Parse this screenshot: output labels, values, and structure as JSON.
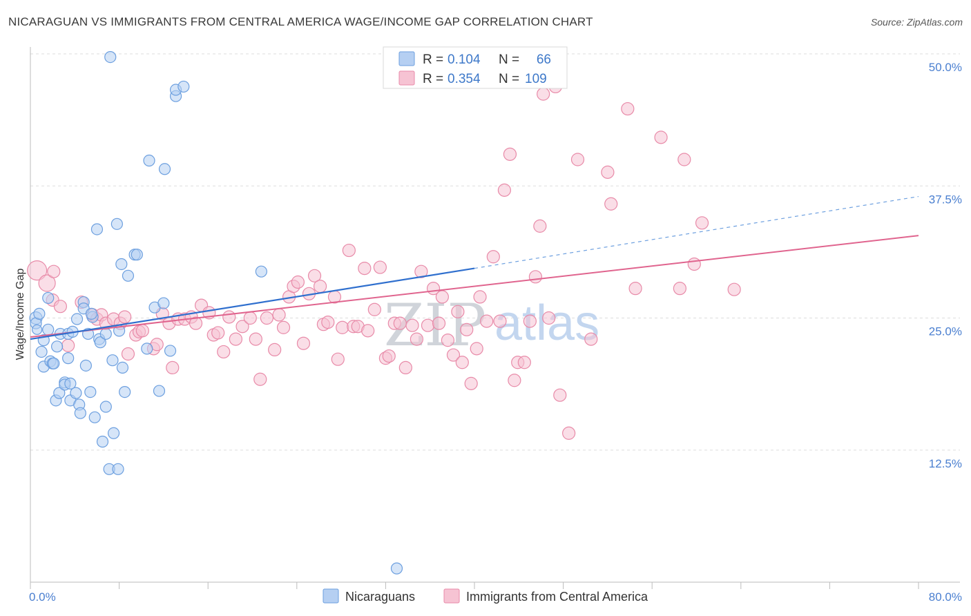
{
  "title": "NICARAGUAN VS IMMIGRANTS FROM CENTRAL AMERICA WAGE/INCOME GAP CORRELATION CHART",
  "source": "Source: ZipAtlas.com",
  "watermark": {
    "zip": "ZIP",
    "atlas": "atlas"
  },
  "colors": {
    "blue_fill": "#b5cff2",
    "blue_stroke": "#6c9fdf",
    "blue_line": "#2f6fce",
    "pink_fill": "#f6c3d3",
    "pink_stroke": "#e88aa8",
    "pink_line": "#e0648e",
    "tick_label": "#4a7fd0",
    "grid": "#dddddd"
  },
  "legend_top": {
    "rows": [
      {
        "r_label": "R =",
        "r_value": "0.104",
        "n_label": "N =",
        "n_value": "66",
        "series": "blue"
      },
      {
        "r_label": "R =",
        "r_value": "0.354",
        "n_label": "N =",
        "n_value": "109",
        "series": "pink"
      }
    ]
  },
  "legend_bottom": [
    {
      "label": "Nicaraguans",
      "series": "blue"
    },
    {
      "label": "Immigrants from Central America",
      "series": "pink"
    }
  ],
  "chart_data": {
    "type": "scatter",
    "title": "NICARAGUAN VS IMMIGRANTS FROM CENTRAL AMERICA WAGE/INCOME GAP CORRELATION CHART",
    "xlabel": "",
    "ylabel": "Wage/Income Gap",
    "xlim": [
      0,
      80
    ],
    "ylim": [
      0,
      50
    ],
    "x_tick_labels": [
      "0.0%",
      "80.0%"
    ],
    "y_ticks": [
      12.5,
      25.0,
      37.5,
      50.0
    ],
    "y_tick_labels": [
      "12.5%",
      "25.0%",
      "37.5%",
      "50.0%"
    ],
    "grid": "horizontal dashed",
    "legend_placement": "top-center",
    "series": [
      {
        "name": "Nicaraguans",
        "color": "blue",
        "trend": {
          "x0": 0,
          "y0": 23.0,
          "x1": 40,
          "y1": 29.7,
          "dashed_to_x": 80,
          "dashed_to_y": 36.5
        },
        "points": [
          [
            0.5,
            25.0,
            9
          ],
          [
            0.5,
            24.5,
            8
          ],
          [
            0.6,
            23.9,
            7
          ],
          [
            0.8,
            25.4,
            8
          ],
          [
            1.2,
            22.9,
            8
          ],
          [
            1.0,
            21.8,
            8
          ],
          [
            1.2,
            20.4,
            8
          ],
          [
            1.6,
            23.9,
            8
          ],
          [
            1.6,
            26.9,
            8
          ],
          [
            1.8,
            20.9,
            8
          ],
          [
            2.0,
            20.7,
            8
          ],
          [
            2.1,
            20.7,
            8
          ],
          [
            2.3,
            17.2,
            8
          ],
          [
            2.4,
            22.3,
            8
          ],
          [
            2.6,
            17.9,
            8
          ],
          [
            2.7,
            23.5,
            8
          ],
          [
            3.1,
            18.9,
            8
          ],
          [
            3.1,
            18.7,
            8
          ],
          [
            3.4,
            23.5,
            8
          ],
          [
            3.4,
            21.2,
            8
          ],
          [
            3.6,
            17.2,
            8
          ],
          [
            3.8,
            23.7,
            8
          ],
          [
            4.1,
            17.9,
            8
          ],
          [
            4.2,
            24.9,
            8
          ],
          [
            4.4,
            16.8,
            8
          ],
          [
            4.5,
            16.0,
            8
          ],
          [
            4.8,
            26.5,
            8
          ],
          [
            4.8,
            25.9,
            8
          ],
          [
            5.0,
            20.5,
            8
          ],
          [
            5.2,
            23.5,
            8
          ],
          [
            5.4,
            18.0,
            8
          ],
          [
            5.6,
            25.1,
            8
          ],
          [
            5.8,
            15.6,
            8
          ],
          [
            6.0,
            33.4,
            8
          ],
          [
            6.2,
            23.0,
            8
          ],
          [
            6.3,
            22.7,
            8
          ],
          [
            6.5,
            13.3,
            8
          ],
          [
            6.8,
            23.5,
            8
          ],
          [
            6.8,
            16.6,
            8
          ],
          [
            7.1,
            10.7,
            8
          ],
          [
            7.2,
            49.7,
            8
          ],
          [
            7.4,
            21.0,
            8
          ],
          [
            7.5,
            14.1,
            8
          ],
          [
            7.8,
            33.9,
            8
          ],
          [
            7.9,
            10.7,
            8
          ],
          [
            8.0,
            23.8,
            8
          ],
          [
            8.2,
            30.1,
            8
          ],
          [
            8.3,
            20.3,
            8
          ],
          [
            8.5,
            18.0,
            8
          ],
          [
            8.8,
            29.0,
            8
          ],
          [
            9.4,
            31.0,
            8
          ],
          [
            9.6,
            31.0,
            8
          ],
          [
            10.5,
            22.1,
            8
          ],
          [
            10.7,
            39.9,
            8
          ],
          [
            11.2,
            26.0,
            8
          ],
          [
            11.6,
            18.1,
            8
          ],
          [
            12.0,
            26.4,
            8
          ],
          [
            12.1,
            39.1,
            8
          ],
          [
            12.6,
            21.9,
            8
          ],
          [
            13.1,
            46.0,
            8
          ],
          [
            13.1,
            46.6,
            8
          ],
          [
            13.8,
            46.9,
            8
          ],
          [
            20.8,
            29.4,
            8
          ],
          [
            33.0,
            1.3,
            8
          ],
          [
            3.6,
            18.8,
            8
          ],
          [
            5.5,
            25.4,
            8
          ]
        ]
      },
      {
        "name": "Immigrants from Central America",
        "color": "pink",
        "trend": {
          "x0": 0,
          "y0": 23.2,
          "x1": 80,
          "y1": 32.8
        },
        "points": [
          [
            0.6,
            29.5,
            14
          ],
          [
            1.5,
            28.3,
            12
          ],
          [
            2.0,
            26.7,
            9
          ],
          [
            2.7,
            26.1,
            9
          ],
          [
            3.4,
            22.4,
            9
          ],
          [
            4.6,
            26.5,
            9
          ],
          [
            5.6,
            25.3,
            9
          ],
          [
            6.0,
            24.9,
            9
          ],
          [
            6.4,
            25.3,
            9
          ],
          [
            6.8,
            24.5,
            9
          ],
          [
            7.5,
            24.9,
            9
          ],
          [
            8.1,
            24.5,
            9
          ],
          [
            8.5,
            25.1,
            9
          ],
          [
            8.8,
            21.6,
            9
          ],
          [
            9.5,
            23.4,
            9
          ],
          [
            9.8,
            23.7,
            9
          ],
          [
            10.1,
            23.8,
            9
          ],
          [
            11.1,
            22.1,
            9
          ],
          [
            11.4,
            22.5,
            9
          ],
          [
            11.9,
            25.4,
            9
          ],
          [
            12.5,
            24.5,
            9
          ],
          [
            12.8,
            20.3,
            9
          ],
          [
            13.3,
            24.9,
            9
          ],
          [
            13.9,
            24.9,
            9
          ],
          [
            14.5,
            25.1,
            9
          ],
          [
            14.9,
            24.5,
            9
          ],
          [
            15.4,
            26.2,
            9
          ],
          [
            16.1,
            25.5,
            9
          ],
          [
            16.5,
            23.4,
            9
          ],
          [
            16.9,
            23.6,
            9
          ],
          [
            17.4,
            21.8,
            9
          ],
          [
            17.9,
            25.1,
            9
          ],
          [
            18.5,
            23.0,
            9
          ],
          [
            19.1,
            24.2,
            9
          ],
          [
            19.8,
            25.0,
            9
          ],
          [
            20.3,
            23.0,
            9
          ],
          [
            20.7,
            19.2,
            9
          ],
          [
            21.3,
            25.0,
            9
          ],
          [
            22.0,
            22.0,
            9
          ],
          [
            22.4,
            25.3,
            9
          ],
          [
            22.8,
            24.1,
            9
          ],
          [
            23.3,
            27.0,
            9
          ],
          [
            23.7,
            28.0,
            9
          ],
          [
            24.1,
            28.4,
            9
          ],
          [
            24.6,
            22.6,
            9
          ],
          [
            25.1,
            27.3,
            9
          ],
          [
            25.6,
            29.0,
            9
          ],
          [
            26.1,
            28.0,
            9
          ],
          [
            26.4,
            24.4,
            9
          ],
          [
            26.8,
            24.6,
            9
          ],
          [
            27.4,
            27.0,
            9
          ],
          [
            27.7,
            21.1,
            9
          ],
          [
            28.1,
            24.1,
            9
          ],
          [
            28.7,
            31.4,
            9
          ],
          [
            29.1,
            24.2,
            9
          ],
          [
            29.5,
            24.2,
            9
          ],
          [
            30.1,
            29.7,
            9
          ],
          [
            30.4,
            23.8,
            9
          ],
          [
            31.0,
            25.8,
            9
          ],
          [
            31.5,
            29.8,
            9
          ],
          [
            32.0,
            21.2,
            9
          ],
          [
            32.3,
            21.4,
            9
          ],
          [
            32.8,
            24.5,
            9
          ],
          [
            33.3,
            24.5,
            9
          ],
          [
            33.8,
            20.3,
            9
          ],
          [
            34.4,
            24.3,
            9
          ],
          [
            34.8,
            23.0,
            9
          ],
          [
            35.2,
            29.4,
            9
          ],
          [
            35.8,
            24.3,
            9
          ],
          [
            36.3,
            27.8,
            9
          ],
          [
            36.8,
            24.5,
            9
          ],
          [
            37.1,
            27.0,
            9
          ],
          [
            37.6,
            22.9,
            9
          ],
          [
            38.1,
            21.5,
            9
          ],
          [
            38.5,
            25.6,
            9
          ],
          [
            38.9,
            20.8,
            9
          ],
          [
            39.3,
            23.9,
            9
          ],
          [
            39.7,
            18.8,
            9
          ],
          [
            40.2,
            22.1,
            9
          ],
          [
            40.5,
            27.0,
            9
          ],
          [
            41.1,
            24.7,
            9
          ],
          [
            41.7,
            30.8,
            9
          ],
          [
            42.3,
            24.7,
            9
          ],
          [
            42.7,
            37.1,
            9
          ],
          [
            43.2,
            40.5,
            9
          ],
          [
            43.6,
            19.1,
            9
          ],
          [
            43.9,
            20.8,
            9
          ],
          [
            44.5,
            20.8,
            9
          ],
          [
            45.0,
            24.7,
            9
          ],
          [
            45.5,
            28.9,
            9
          ],
          [
            45.9,
            33.7,
            9
          ],
          [
            46.2,
            46.2,
            9
          ],
          [
            46.7,
            25.0,
            9
          ],
          [
            47.3,
            46.9,
            9
          ],
          [
            47.7,
            17.7,
            9
          ],
          [
            48.5,
            14.1,
            9
          ],
          [
            49.3,
            40.0,
            9
          ],
          [
            50.5,
            23.0,
            9
          ],
          [
            52.0,
            38.8,
            9
          ],
          [
            52.3,
            35.8,
            9
          ],
          [
            53.8,
            44.8,
            9
          ],
          [
            54.5,
            27.8,
            9
          ],
          [
            56.8,
            42.1,
            9
          ],
          [
            58.5,
            27.8,
            9
          ],
          [
            58.9,
            40.0,
            9
          ],
          [
            59.8,
            30.1,
            9
          ],
          [
            60.5,
            34.0,
            9
          ],
          [
            63.4,
            27.7,
            9
          ],
          [
            2.1,
            29.4,
            9
          ]
        ]
      }
    ]
  }
}
